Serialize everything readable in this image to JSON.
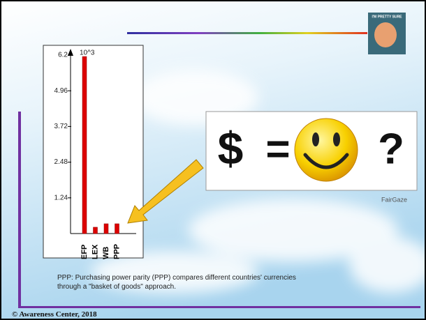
{
  "chart_data": {
    "type": "bar",
    "categories": [
      "EFP",
      "LEX",
      "WB",
      "PPP"
    ],
    "values": [
      6.15,
      0.22,
      0.34,
      0.34
    ],
    "color": "#dd0000",
    "ylim": [
      0,
      6.2
    ],
    "yticks": [
      1.24,
      2.48,
      3.72,
      4.96,
      6.2
    ],
    "y_unit_label": "10^3"
  },
  "meme_caption": "I'M PRETTY SURE",
  "equation": {
    "left": "$",
    "operator": "=",
    "right": "?"
  },
  "image_credit": "FairGaze",
  "caption": "PPP: Purchasing power parity (PPP) compares different countries' currencies through a \"basket of goods\" approach.",
  "footer": "© Awareness Center, 2018"
}
